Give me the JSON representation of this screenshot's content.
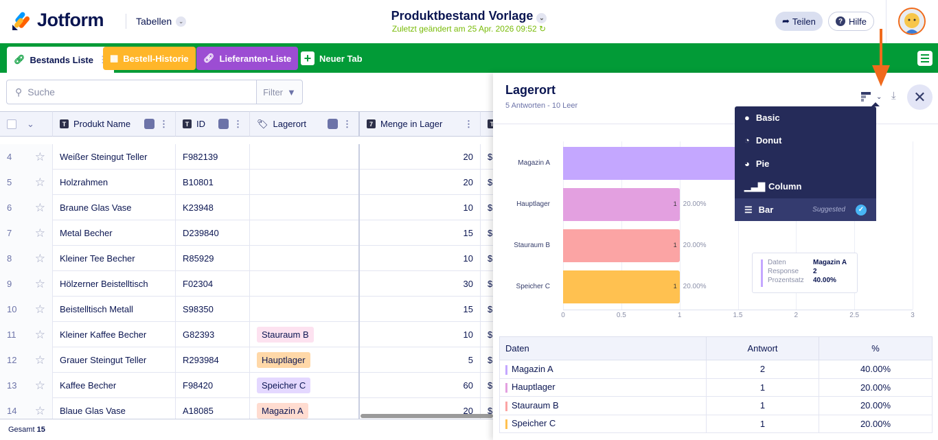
{
  "header": {
    "brand": "Jotform",
    "section": "Tabellen",
    "title": "Produktbestand Vorlage",
    "last_modified": "Zuletzt geändert am 25 Apr. 2026 09:52",
    "share": "Teilen",
    "help": "Hilfe"
  },
  "tabs": [
    {
      "label": "Bestands Liste",
      "color": "#ffffff"
    },
    {
      "label": "Bestell-Historie",
      "color": "#ffb629"
    },
    {
      "label": "Lieferanten-Liste",
      "color": "#9c4dd3"
    },
    {
      "label": "Neuer Tab"
    }
  ],
  "toolbar": {
    "search_placeholder": "Suche",
    "filter": "Filter"
  },
  "columns": [
    "Produkt Name",
    "ID",
    "Lagerort",
    "Menge in Lager"
  ],
  "rows": [
    {
      "n": "4",
      "name": "Weißer Steingut Teller",
      "id": "F982139",
      "loc": "",
      "qty": "20"
    },
    {
      "n": "5",
      "name": "Holzrahmen",
      "id": "B10801",
      "loc": "",
      "qty": "20"
    },
    {
      "n": "6",
      "name": "Braune Glas Vase",
      "id": "K23948",
      "loc": "",
      "qty": "10"
    },
    {
      "n": "7",
      "name": "Metal Becher",
      "id": "D239840",
      "loc": "",
      "qty": "15"
    },
    {
      "n": "8",
      "name": "Kleiner Tee Becher",
      "id": "R85929",
      "loc": "",
      "qty": "10"
    },
    {
      "n": "9",
      "name": "Hölzerner Beistelltisch",
      "id": "F02304",
      "loc": "",
      "qty": "30"
    },
    {
      "n": "10",
      "name": "Beistelltisch Metall",
      "id": "S98350",
      "loc": "",
      "qty": "15"
    },
    {
      "n": "11",
      "name": "Kleiner Kaffee Becher",
      "id": "G82393",
      "loc": "Stauraum B",
      "qty": "10"
    },
    {
      "n": "12",
      "name": "Grauer Steingut Teller",
      "id": "R293984",
      "loc": "Hauptlager",
      "qty": "5"
    },
    {
      "n": "13",
      "name": "Kaffee Becher",
      "id": "F98420",
      "loc": "Speicher C",
      "qty": "60"
    },
    {
      "n": "14",
      "name": "Blaue Glas Vase",
      "id": "A18085",
      "loc": "Magazin A",
      "qty": "20"
    }
  ],
  "footer": {
    "label": "Gesamt",
    "count": "15"
  },
  "panel": {
    "title": "Lagerort",
    "subtitle": "5 Antworten - 10 Leer",
    "table_headers": [
      "Daten",
      "Antwort",
      "%"
    ]
  },
  "chart_menu": {
    "items": [
      "Basic",
      "Donut",
      "Pie",
      "Column",
      "Bar"
    ],
    "selected": "Bar",
    "suggested_label": "Suggested"
  },
  "tooltip": {
    "labels": [
      "Daten",
      "Response",
      "Prozentsatz"
    ],
    "values": [
      "Magazin A",
      "2",
      "40.00%"
    ]
  },
  "chart_data": {
    "type": "bar",
    "orientation": "horizontal",
    "categories": [
      "Magazin A",
      "Hauptlager",
      "Stauraum B",
      "Speicher C"
    ],
    "values": [
      2,
      1,
      1,
      1
    ],
    "percent_labels": [
      "40.00%",
      "20.00%",
      "20.00%",
      "20.00%"
    ],
    "colors": [
      "#c4a7ff",
      "#e3a0e0",
      "#fba4a4",
      "#ffc150"
    ],
    "xlim": [
      0,
      3
    ],
    "xticks": [
      "0",
      "0.5",
      "1",
      "1.5",
      "2",
      "2.5",
      "3"
    ]
  },
  "tag_colors": {
    "Stauraum B": "#fde2f0",
    "Hauptlager": "#ffd8a8",
    "Speicher C": "#e4d8ff",
    "Magazin A": "#ffdcd0"
  }
}
